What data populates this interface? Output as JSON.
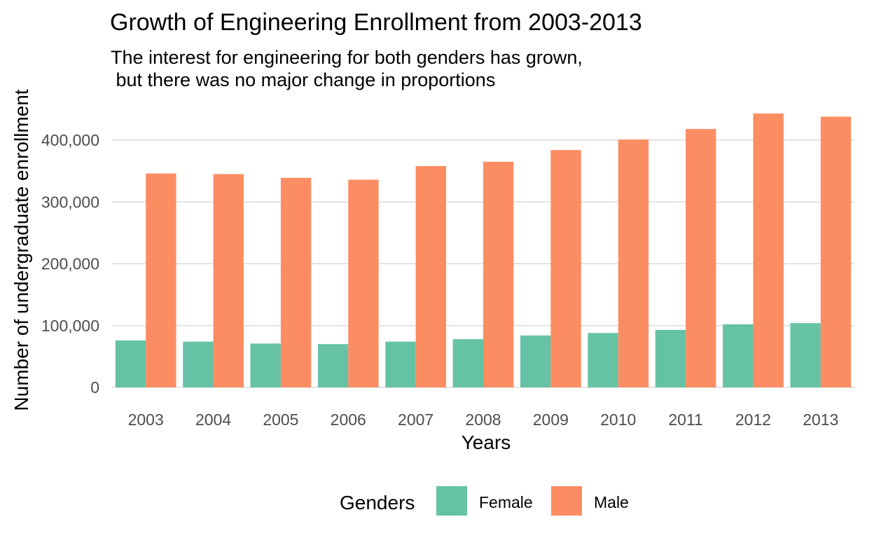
{
  "chart_data": {
    "type": "bar",
    "title": "Growth of Engineering Enrollment from 2003-2013",
    "subtitle_lines": [
      "The interest for engineering for both genders has grown,",
      " but there was no major change in proportions"
    ],
    "xlabel": "Years",
    "ylabel": "Number of undergraduate enrollment",
    "categories": [
      "2003",
      "2004",
      "2005",
      "2006",
      "2007",
      "2008",
      "2009",
      "2010",
      "2011",
      "2012",
      "2013"
    ],
    "series": [
      {
        "name": "Female",
        "color": "#66c2a5",
        "values": [
          76000,
          74000,
          71000,
          70000,
          74000,
          78000,
          84000,
          88000,
          93000,
          102000,
          104000
        ]
      },
      {
        "name": "Male",
        "color": "#fc8d62",
        "values": [
          346000,
          345000,
          339000,
          336000,
          358000,
          365000,
          384000,
          401000,
          418000,
          443000,
          438000
        ]
      }
    ],
    "ylim": [
      0,
      450000
    ],
    "yticks": [
      0,
      100000,
      200000,
      300000,
      400000
    ],
    "ytick_labels": [
      "0",
      "100,000",
      "200,000",
      "300,000",
      "400,000"
    ],
    "grid": true,
    "legend": {
      "title": "Genders",
      "position": "bottom"
    }
  }
}
